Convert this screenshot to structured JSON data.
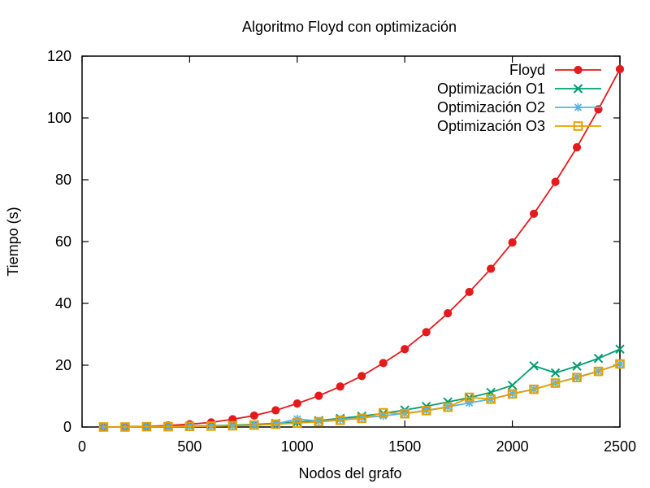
{
  "chart_data": {
    "type": "line",
    "title": "Algoritmo Floyd con optimización",
    "xlabel": "Nodos del grafo",
    "ylabel": "Tiempo (s)",
    "xlim": [
      0,
      2500
    ],
    "ylim": [
      0,
      120
    ],
    "xticks": [
      0,
      500,
      1000,
      1500,
      2000,
      2500
    ],
    "yticks": [
      0,
      20,
      40,
      60,
      80,
      100,
      120
    ],
    "grid": false,
    "legend_position": "top-right",
    "x": [
      100,
      200,
      300,
      400,
      500,
      600,
      700,
      800,
      900,
      1000,
      1100,
      1200,
      1300,
      1400,
      1500,
      1600,
      1700,
      1800,
      1900,
      2000,
      2100,
      2200,
      2300,
      2400,
      2500
    ],
    "series": [
      {
        "name": "Floyd",
        "color": "#e41a1c",
        "marker": "filled-circle",
        "values": [
          0.0,
          0.1,
          0.2,
          0.5,
          0.9,
          1.5,
          2.5,
          3.7,
          5.4,
          7.6,
          10.1,
          13.1,
          16.5,
          20.7,
          25.2,
          30.7,
          36.8,
          43.7,
          51.2,
          59.7,
          69.0,
          79.3,
          90.5,
          102.8,
          115.8
        ]
      },
      {
        "name": "Optimización O1",
        "color": "#009e73",
        "marker": "x",
        "values": [
          0.0,
          0.0,
          0.1,
          0.2,
          0.3,
          0.4,
          0.6,
          0.8,
          1.2,
          1.6,
          2.1,
          2.8,
          3.5,
          4.4,
          5.5,
          6.7,
          8.1,
          9.5,
          11.2,
          13.5,
          19.8,
          17.5,
          19.7,
          22.2,
          25.2
        ]
      },
      {
        "name": "Optimización O2",
        "color": "#56b4e9",
        "marker": "asterisk",
        "values": [
          0.0,
          0.0,
          0.1,
          0.1,
          0.2,
          0.3,
          0.4,
          0.6,
          1.0,
          2.6,
          1.9,
          2.4,
          3.0,
          3.6,
          4.4,
          5.4,
          6.5,
          7.8,
          9.0,
          10.8,
          12.2,
          14.2,
          16.1,
          18.1,
          20.4
        ]
      },
      {
        "name": "Optimización O3",
        "color": "#e69f00",
        "marker": "open-square",
        "values": [
          0.0,
          0.0,
          0.1,
          0.1,
          0.2,
          0.3,
          0.4,
          0.6,
          0.9,
          1.3,
          1.7,
          2.2,
          2.8,
          4.6,
          4.3,
          5.3,
          6.4,
          9.6,
          9.0,
          10.7,
          12.2,
          14.2,
          16.0,
          18.0,
          20.4
        ]
      }
    ]
  }
}
